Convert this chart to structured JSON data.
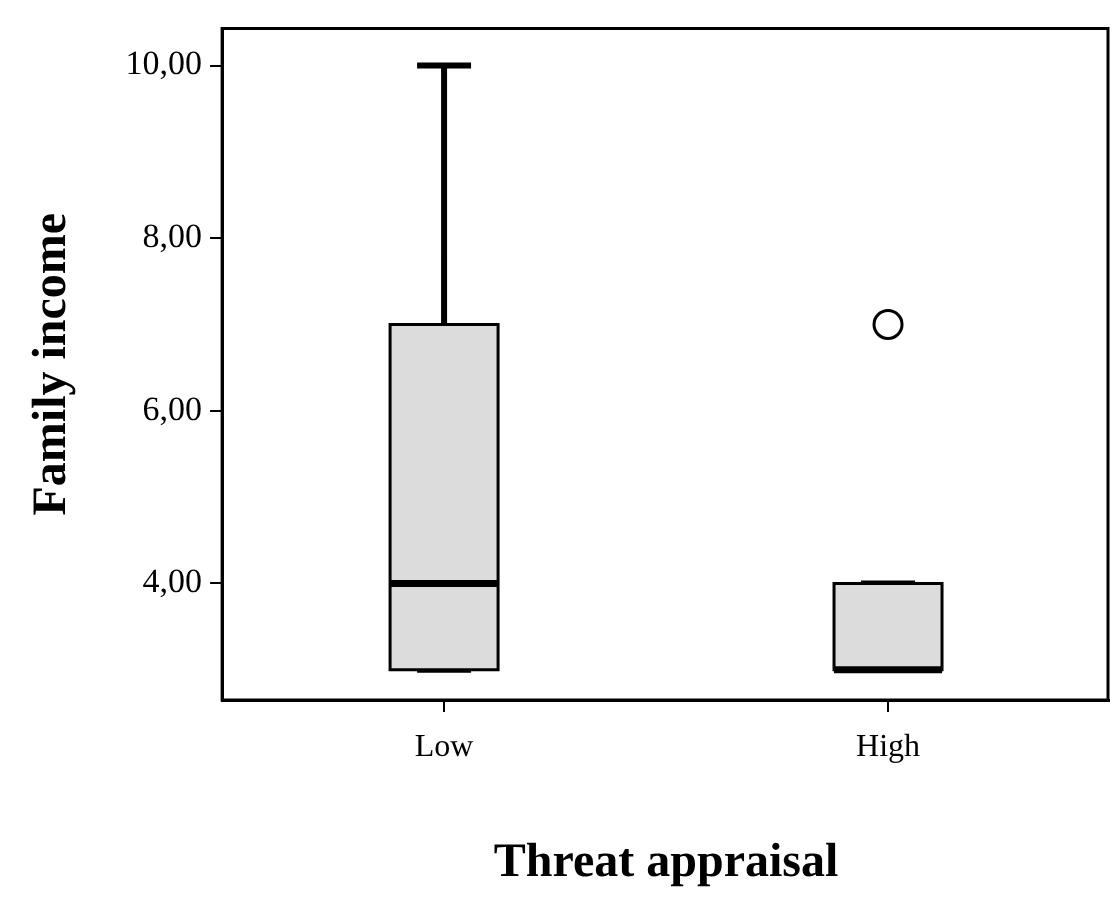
{
  "chart_data": {
    "type": "box",
    "xlabel": "Threat appraisal",
    "ylabel": "Family income",
    "categories": [
      "Low",
      "High"
    ],
    "series": [
      {
        "color": "#dcdcdc",
        "boxes": [
          {
            "low": 3,
            "q1": 3,
            "median": 4,
            "q3": 7,
            "high": 10
          },
          {
            "low": 3,
            "q1": 3,
            "median": 3,
            "q3": 4,
            "high": 4,
            "outliers": [
              7
            ]
          }
        ]
      }
    ],
    "ylim": [
      2.65,
      10.43
    ],
    "yticks": [
      {
        "value": 4,
        "label": "4,00"
      },
      {
        "value": 6,
        "label": "6,00"
      },
      {
        "value": 8,
        "label": "8,00"
      },
      {
        "value": 10,
        "label": "10,00"
      }
    ]
  }
}
